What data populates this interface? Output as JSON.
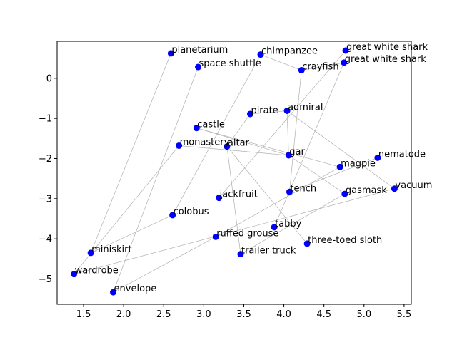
{
  "chart_data": {
    "type": "scatter",
    "title": "",
    "xlabel": "",
    "ylabel": "",
    "xlim": [
      1.17,
      5.59
    ],
    "ylim": [
      -5.63,
      0.92
    ],
    "grid": false,
    "legend": "none",
    "x_ticks": [
      1.5,
      2.0,
      2.5,
      3.0,
      3.5,
      4.0,
      4.5,
      5.0,
      5.5
    ],
    "x_tick_labels": [
      "1.5",
      "2.0",
      "2.5",
      "3.0",
      "3.5",
      "4.0",
      "4.5",
      "5.0",
      "5.5"
    ],
    "y_ticks": [
      0,
      -1,
      -2,
      -3,
      -4,
      -5
    ],
    "y_tick_labels": [
      "0",
      "−1",
      "−2",
      "−3",
      "−4",
      "−5"
    ],
    "point_color": "#0000ff",
    "edge_color": "#b0b0b0",
    "points": [
      {
        "label": "planetarium",
        "x": 2.59,
        "y": 0.62
      },
      {
        "label": "space shuttle",
        "x": 2.93,
        "y": 0.28
      },
      {
        "label": "chimpanzee",
        "x": 3.71,
        "y": 0.59
      },
      {
        "label": "crayfish",
        "x": 4.22,
        "y": 0.2
      },
      {
        "label": "great white shark",
        "x": 4.77,
        "y": 0.69
      },
      {
        "label": "great white shark",
        "x": 4.75,
        "y": 0.39
      },
      {
        "label": "pirate",
        "x": 3.58,
        "y": -0.89
      },
      {
        "label": "admiral",
        "x": 4.04,
        "y": -0.81
      },
      {
        "label": "castle",
        "x": 2.91,
        "y": -1.24
      },
      {
        "label": "monastery",
        "x": 2.69,
        "y": -1.68
      },
      {
        "label": "altar",
        "x": 3.29,
        "y": -1.7
      },
      {
        "label": "gar",
        "x": 4.06,
        "y": -1.92
      },
      {
        "label": "nematode",
        "x": 5.17,
        "y": -1.98
      },
      {
        "label": "magpie",
        "x": 4.7,
        "y": -2.21
      },
      {
        "label": "vacuum",
        "x": 5.38,
        "y": -2.75
      },
      {
        "label": "tench",
        "x": 4.07,
        "y": -2.83
      },
      {
        "label": "gasmask",
        "x": 4.76,
        "y": -2.88
      },
      {
        "label": "jackfruit",
        "x": 3.19,
        "y": -2.98
      },
      {
        "label": "colobus",
        "x": 2.61,
        "y": -3.41
      },
      {
        "label": "tabby",
        "x": 3.88,
        "y": -3.71
      },
      {
        "label": "ruffed grouse",
        "x": 3.15,
        "y": -3.95
      },
      {
        "label": "three-toed sloth",
        "x": 4.29,
        "y": -4.12
      },
      {
        "label": "trailer truck",
        "x": 3.46,
        "y": -4.38
      },
      {
        "label": "miniskirt",
        "x": 1.59,
        "y": -4.35
      },
      {
        "label": "wardrobe",
        "x": 1.38,
        "y": -4.88
      },
      {
        "label": "envelope",
        "x": 1.87,
        "y": -5.33
      }
    ],
    "edges": [
      [
        0,
        23
      ],
      [
        1,
        25
      ],
      [
        2,
        18
      ],
      [
        3,
        5
      ],
      [
        3,
        2
      ],
      [
        3,
        15
      ],
      [
        4,
        17
      ],
      [
        5,
        19
      ],
      [
        6,
        7
      ],
      [
        6,
        10
      ],
      [
        7,
        11
      ],
      [
        7,
        14
      ],
      [
        8,
        11
      ],
      [
        8,
        13
      ],
      [
        9,
        11
      ],
      [
        9,
        24
      ],
      [
        10,
        22
      ],
      [
        10,
        21
      ],
      [
        11,
        16
      ],
      [
        12,
        15
      ],
      [
        13,
        20
      ],
      [
        14,
        24
      ],
      [
        16,
        22
      ],
      [
        25,
        20
      ],
      [
        18,
        23
      ]
    ]
  }
}
